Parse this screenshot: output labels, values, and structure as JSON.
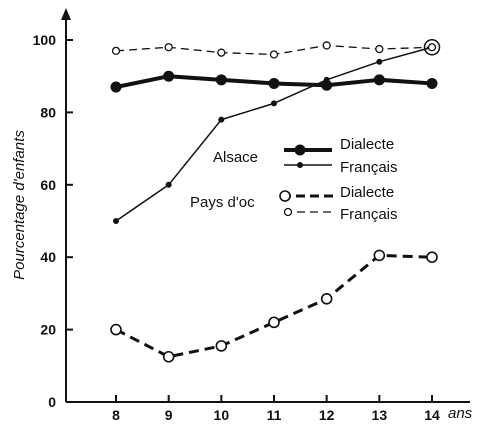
{
  "chart_data": {
    "type": "line",
    "title": "",
    "xlabel": "ans",
    "ylabel": "Pourcentage d'enfants",
    "x": [
      8,
      9,
      10,
      11,
      12,
      13,
      14
    ],
    "x_ticks": [
      "8",
      "9",
      "10",
      "11",
      "12",
      "13",
      "14"
    ],
    "y_ticks": [
      "0",
      "20",
      "40",
      "60",
      "80",
      "100"
    ],
    "xlim": [
      7,
      14.8
    ],
    "ylim": [
      0,
      100
    ],
    "grid": false,
    "legend": {
      "placement": "center-right",
      "groups": [
        {
          "label": "Alsace",
          "entries": [
            "Dialecte",
            "Français"
          ]
        },
        {
          "label": "Pays d'oc",
          "entries": [
            "Dialecte",
            "Français"
          ]
        }
      ]
    },
    "series": [
      {
        "group": "Alsace",
        "name": "Dialecte",
        "line": "thick-solid",
        "marker": "filled-large",
        "color": "#111111",
        "values": [
          87,
          90,
          89,
          88,
          87.5,
          89,
          88
        ]
      },
      {
        "group": "Alsace",
        "name": "Français",
        "line": "thin-solid",
        "marker": "filled-small",
        "color": "#111111",
        "values": [
          50,
          60,
          78,
          82.5,
          89,
          94,
          98
        ]
      },
      {
        "group": "Pays d'oc",
        "name": "Dialecte",
        "line": "thick-dashed",
        "marker": "open-large",
        "color": "#111111",
        "values": [
          20,
          12.5,
          15.5,
          22,
          28.5,
          40.5,
          40
        ]
      },
      {
        "group": "Pays d'oc",
        "name": "Français",
        "line": "thin-dashed",
        "marker": "open-small",
        "color": "#111111",
        "values": [
          97,
          98,
          96.5,
          96,
          98.5,
          97.5,
          98
        ]
      }
    ]
  }
}
